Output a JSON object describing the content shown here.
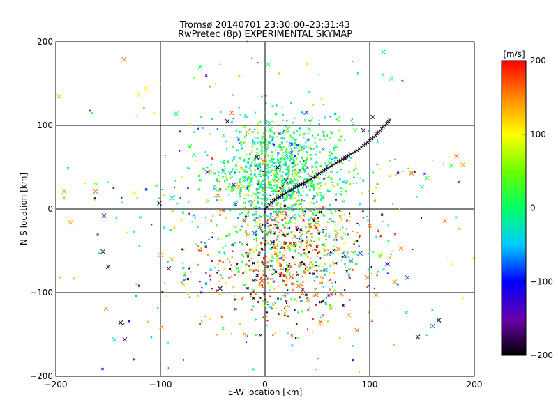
{
  "chart_data": {
    "type": "scatter",
    "title": "Tromsø 20140701 23:30:00–23:31:43",
    "subtitle": "RwPretec (8p) EXPERIMENTAL SKYMAP",
    "xlabel": "E-W location [km]",
    "ylabel": "N-S location [km]",
    "xlim": [
      -200,
      200
    ],
    "ylim": [
      -200,
      200
    ],
    "x_ticks": [
      -200,
      -100,
      0,
      100,
      200
    ],
    "y_ticks": [
      -200,
      -100,
      0,
      100,
      200
    ],
    "grid": true,
    "colorbar": {
      "label": "[m/s]",
      "range": [
        -200,
        200
      ],
      "ticks": [
        200,
        100,
        0,
        -100,
        -200
      ]
    },
    "series": [
      {
        "marker": "x",
        "points": [
          [
            -197,
            135
          ],
          [
            -192,
            21
          ],
          [
            -186,
            -16
          ],
          [
            -162,
            21
          ],
          [
            -154,
            -8
          ],
          [
            -155,
            -51
          ],
          [
            -152,
            -119
          ],
          [
            -150,
            -69
          ],
          [
            -144,
            -156
          ],
          [
            -138,
            -136
          ],
          [
            -134,
            -156
          ],
          [
            -135,
            179
          ],
          [
            -125,
            19
          ],
          [
            -121,
            137
          ],
          [
            -114,
            144
          ],
          [
            -101,
            7
          ],
          [
            -100,
            -55
          ],
          [
            -99,
            -141
          ],
          [
            -92,
            -71
          ],
          [
            -89,
            -60
          ],
          [
            -89,
            13
          ],
          [
            -85,
            114
          ],
          [
            -72,
            75
          ],
          [
            -68,
            65
          ],
          [
            -62,
            170
          ],
          [
            -55,
            44
          ],
          [
            -48,
            24
          ],
          [
            -45,
            16
          ],
          [
            -43,
            -95
          ],
          [
            -40,
            45
          ],
          [
            -36,
            105
          ],
          [
            -32,
            115
          ],
          [
            -30,
            29
          ],
          [
            -25,
            27
          ],
          [
            -18,
            35
          ],
          [
            -17,
            92
          ],
          [
            -16,
            -31
          ],
          [
            -10,
            -29
          ],
          [
            -8,
            62
          ],
          [
            -4,
            31
          ],
          [
            -3,
            -86
          ],
          [
            -2,
            58
          ],
          [
            3,
            173
          ],
          [
            5,
            95
          ],
          [
            7,
            -40
          ],
          [
            10,
            -46
          ],
          [
            12,
            50
          ],
          [
            15,
            -26
          ],
          [
            18,
            -56
          ],
          [
            20,
            34
          ],
          [
            25,
            -81
          ],
          [
            28,
            -33
          ],
          [
            30,
            41
          ],
          [
            32,
            -92
          ],
          [
            36,
            -101
          ],
          [
            38,
            29
          ],
          [
            41,
            -109
          ],
          [
            44,
            -64
          ],
          [
            46,
            28
          ],
          [
            49,
            -103
          ],
          [
            53,
            -135
          ],
          [
            55,
            15
          ],
          [
            58,
            -73
          ],
          [
            62,
            55
          ],
          [
            63,
            -118
          ],
          [
            68,
            74
          ],
          [
            70,
            -48
          ],
          [
            73,
            -102
          ],
          [
            77,
            61
          ],
          [
            80,
            -127
          ],
          [
            82,
            -62
          ],
          [
            86,
            94
          ],
          [
            88,
            -145
          ],
          [
            91,
            -53
          ],
          [
            94,
            94
          ],
          [
            98,
            -82
          ],
          [
            100,
            -20
          ],
          [
            103,
            110
          ],
          [
            106,
            -103
          ],
          [
            110,
            -57
          ],
          [
            113,
            188
          ],
          [
            117,
            -66
          ],
          [
            121,
            156
          ],
          [
            124,
            -87
          ],
          [
            130,
            -47
          ],
          [
            136,
            -82
          ],
          [
            140,
            43
          ],
          [
            146,
            -153
          ],
          [
            150,
            26
          ],
          [
            155,
            37
          ],
          [
            160,
            -140
          ],
          [
            166,
            -133
          ],
          [
            172,
            -14
          ],
          [
            178,
            52
          ],
          [
            183,
            63
          ],
          [
            189,
            53
          ]
        ],
        "values": [
          130,
          150,
          140,
          160,
          -150,
          -180,
          160,
          -170,
          -40,
          -190,
          -170,
          160,
          90,
          110,
          100,
          -190,
          150,
          150,
          -170,
          130,
          -30,
          10,
          20,
          0,
          5,
          -160,
          -60,
          160,
          -180,
          -30,
          -190,
          160,
          -160,
          140,
          -50,
          130,
          130,
          -80,
          -180,
          10,
          170,
          150,
          20,
          10,
          -190,
          140,
          -200,
          160,
          150,
          -170,
          170,
          150,
          60,
          160,
          170,
          -150,
          140,
          150,
          40,
          170,
          160,
          -10,
          -60,
          20,
          140,
          0,
          150,
          160,
          -190,
          140,
          -60,
          30,
          170,
          -90,
          -180,
          160,
          150,
          -180,
          160,
          50,
          15,
          -120,
          10,
          150,
          150,
          -80,
          160,
          -190,
          0,
          30,
          -70,
          -190,
          150,
          20,
          160,
          140
        ]
      },
      {
        "marker": "dot",
        "point_count": 2600,
        "x_range": [
          -200,
          200
        ],
        "y_range": [
          -200,
          200
        ]
      },
      {
        "marker": "x",
        "name": "",
        "arc_points": [
          [
            0,
            0
          ],
          [
            8,
            10
          ],
          [
            16,
            16
          ],
          [
            24,
            22
          ],
          [
            32,
            28
          ],
          [
            40,
            33
          ],
          [
            48,
            39
          ],
          [
            56,
            46
          ],
          [
            64,
            52
          ],
          [
            72,
            58
          ],
          [
            80,
            64
          ],
          [
            88,
            70
          ],
          [
            96,
            78
          ],
          [
            104,
            86
          ],
          [
            110,
            94
          ],
          [
            116,
            102
          ],
          [
            120,
            108
          ]
        ],
        "arc_value": -190
      }
    ]
  }
}
